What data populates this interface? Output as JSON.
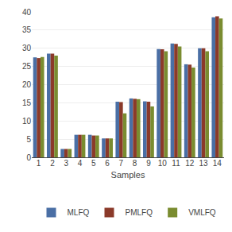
{
  "chart_data": {
    "type": "bar",
    "categories": [
      "1",
      "2",
      "3",
      "4",
      "5",
      "6",
      "7",
      "8",
      "9",
      "10",
      "11",
      "12",
      "13",
      "14"
    ],
    "series": [
      {
        "name": "MLFQ",
        "color": "#4a6fa5",
        "values": [
          27.5,
          28.5,
          2.3,
          6.2,
          6.2,
          5.2,
          15.3,
          16.2,
          15.4,
          29.8,
          31.3,
          25.6,
          30.0,
          38.5
        ]
      },
      {
        "name": "PMLFQ",
        "color": "#8b3a2a",
        "values": [
          27.3,
          28.5,
          2.3,
          6.2,
          6.0,
          5.2,
          15.2,
          16.1,
          15.3,
          29.7,
          31.2,
          25.5,
          30.0,
          38.8
        ]
      },
      {
        "name": "VMLFQ",
        "color": "#7a8c30",
        "values": [
          27.6,
          28.0,
          2.3,
          6.2,
          6.0,
          5.2,
          12.1,
          16.0,
          14.0,
          29.2,
          30.5,
          24.7,
          29.2,
          38.2
        ]
      }
    ],
    "xlabel": "Samples",
    "ylim": [
      0,
      40
    ],
    "yticks": [
      0,
      5,
      10,
      15,
      20,
      25,
      30,
      35,
      40
    ],
    "grid": true,
    "legend": "bottom"
  }
}
